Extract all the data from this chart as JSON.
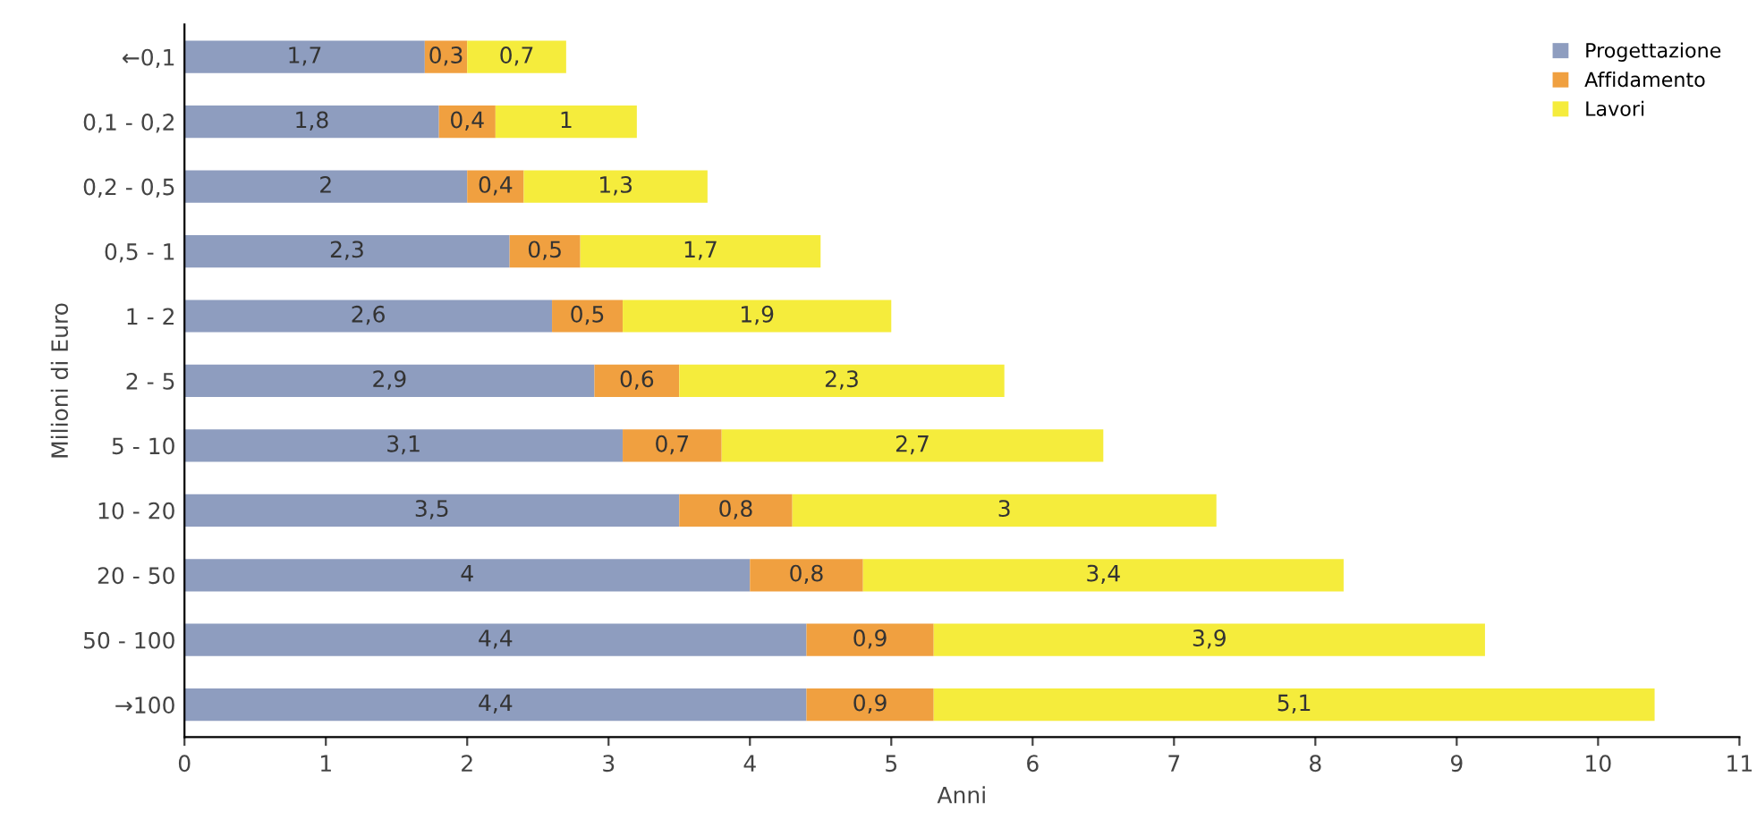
{
  "chart_data": {
    "type": "bar",
    "orientation": "horizontal",
    "stacked": true,
    "xlabel": "Anni",
    "ylabel": "Milioni di Euro",
    "categories": [
      "←0,1",
      "0,1 - 0,2",
      "0,2 - 0,5",
      "0,5 - 1",
      "1 - 2",
      "2 - 5",
      "5 - 10",
      "10 - 20",
      "20 - 50",
      "50 - 100",
      "→100"
    ],
    "series": [
      {
        "name": "Progettazione",
        "color": "#8e9dbf",
        "values": [
          1.7,
          1.8,
          2,
          2.3,
          2.6,
          2.9,
          3.1,
          3.5,
          4,
          4.4,
          4.4
        ],
        "value_labels": [
          "1,7",
          "1,8",
          "2",
          "2,3",
          "2,6",
          "2,9",
          "3,1",
          "3,5",
          "4",
          "4,4",
          "4,4"
        ]
      },
      {
        "name": "Affidamento",
        "color": "#f0a040",
        "values": [
          0.3,
          0.4,
          0.4,
          0.5,
          0.5,
          0.6,
          0.7,
          0.8,
          0.8,
          0.9,
          0.9
        ],
        "value_labels": [
          "0,3",
          "0,4",
          "0,4",
          "0,5",
          "0,5",
          "0,6",
          "0,7",
          "0,8",
          "0,8",
          "0,9",
          "0,9"
        ]
      },
      {
        "name": "Lavori",
        "color": "#f5ec3c",
        "values": [
          0.7,
          1,
          1.3,
          1.7,
          1.9,
          2.3,
          2.7,
          3,
          3.4,
          3.9,
          5.1
        ],
        "value_labels": [
          "0,7",
          "1",
          "1,3",
          "1,7",
          "1,9",
          "2,3",
          "2,7",
          "3",
          "3,4",
          "3,9",
          "5,1"
        ]
      }
    ],
    "xlim": [
      0,
      11
    ],
    "xticks": [
      0,
      1,
      2,
      3,
      4,
      5,
      6,
      7,
      8,
      9,
      10,
      11
    ],
    "grid": false,
    "legend": "top right"
  }
}
